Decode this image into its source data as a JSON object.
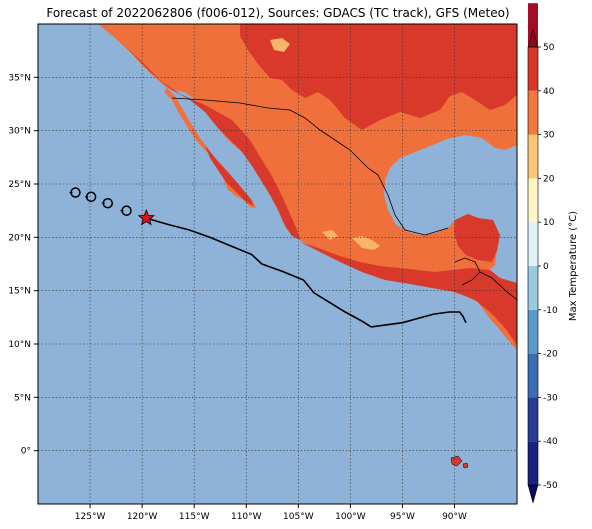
{
  "title": "Forecast of 2022062806 (f006-012), Sources: GDACS (TC track), GFS (Meteo)",
  "map": {
    "lon_range": [
      -130,
      -84
    ],
    "lat_range": [
      -5,
      40
    ],
    "lon_ticks": [
      {
        "value": -125,
        "label": "125°W"
      },
      {
        "value": -120,
        "label": "120°W"
      },
      {
        "value": -115,
        "label": "115°W"
      },
      {
        "value": -110,
        "label": "110°W"
      },
      {
        "value": -105,
        "label": "105°W"
      },
      {
        "value": -100,
        "label": "100°W"
      },
      {
        "value": -95,
        "label": "95°W"
      },
      {
        "value": -90,
        "label": "90°W"
      }
    ],
    "lat_ticks": [
      {
        "value": 35,
        "label": "35°N"
      },
      {
        "value": 30,
        "label": "30°N"
      },
      {
        "value": 25,
        "label": "25°N"
      },
      {
        "value": 20,
        "label": "20°N"
      },
      {
        "value": 15,
        "label": "15°N"
      },
      {
        "value": 10,
        "label": "10°N"
      },
      {
        "value": 5,
        "label": "5°N"
      },
      {
        "value": 0,
        "label": "0°"
      }
    ],
    "ocean_color": "#8fb2d8",
    "grid": true
  },
  "colorbar": {
    "label": "Max Temperature (°C)",
    "min": -50,
    "max": 50,
    "step": 10,
    "ticks": [
      50,
      40,
      30,
      20,
      10,
      0,
      -10,
      -20,
      -30,
      -40,
      -50
    ],
    "colors": [
      "#1a237e",
      "#283b97",
      "#3a6db3",
      "#5b9bc9",
      "#98cae0",
      "#dff2f7",
      "#fff5c2",
      "#fdc674",
      "#f4773e",
      "#d6392a",
      "#a50d27"
    ]
  },
  "storm": {
    "current_position": {
      "lon": -119.6,
      "lat": 21.8
    },
    "past_positions": [
      {
        "lon": -126.4,
        "lat": 24.2
      },
      {
        "lon": -124.9,
        "lat": 23.8
      },
      {
        "lon": -123.3,
        "lat": 23.2
      },
      {
        "lon": -121.5,
        "lat": 22.5
      }
    ],
    "forecast_track": [
      [
        -119.6,
        21.8
      ],
      [
        -117.5,
        21.2
      ],
      [
        -115.5,
        20.7
      ],
      [
        -113.5,
        20.0
      ],
      [
        -111.0,
        19.0
      ],
      [
        -109.5,
        18.4
      ],
      [
        -108.5,
        17.5
      ],
      [
        -106.5,
        16.8
      ],
      [
        -104.5,
        16.0
      ],
      [
        -103.5,
        14.8
      ],
      [
        -102.0,
        13.9
      ],
      [
        -100.5,
        13.0
      ],
      [
        -99.0,
        12.2
      ],
      [
        -98.0,
        11.6
      ],
      [
        -96.5,
        11.8
      ],
      [
        -95.0,
        12.0
      ],
      [
        -93.5,
        12.4
      ],
      [
        -92.0,
        12.8
      ],
      [
        -90.5,
        13.0
      ],
      [
        -89.5,
        13.0
      ],
      [
        -89.2,
        12.6
      ],
      [
        -88.9,
        12.0
      ]
    ],
    "track_color": "#000000",
    "marker_color": "#e3101a"
  },
  "land": {
    "colors": {
      "hot": "#d8392b",
      "warm": "#f0703c",
      "mild": "#f9b36b",
      "cool": "#fde8a8"
    }
  }
}
